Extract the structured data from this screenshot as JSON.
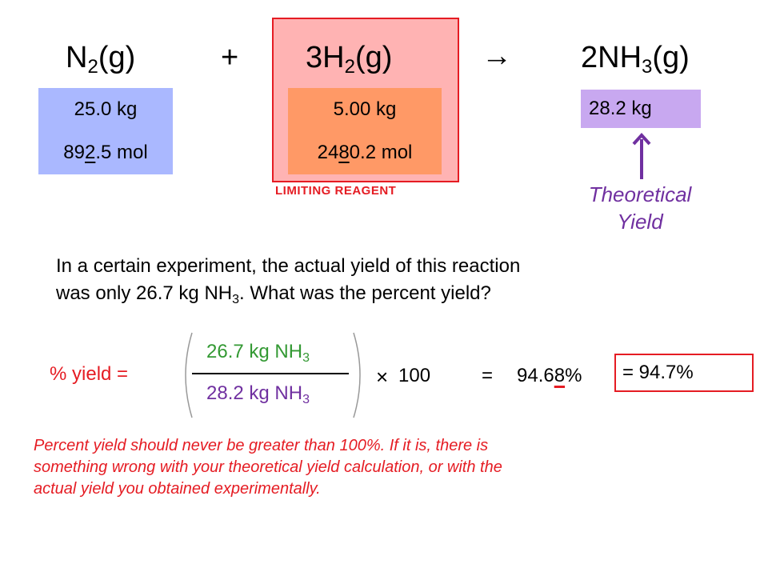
{
  "equation": {
    "reactant1": {
      "pre": "N",
      "sub": "2",
      "post": "(g)"
    },
    "plus": "+",
    "reactant2": {
      "pre": "3H",
      "sub": "2",
      "post": "(g)"
    },
    "arrow": "→",
    "product": {
      "pre": "2NH",
      "sub": "3",
      "post": "(g)"
    }
  },
  "n2_box": {
    "mass": "25.0 kg",
    "mol_a": "89",
    "mol_u": "2",
    "mol_b": ".5 mol",
    "color": "#aab8ff"
  },
  "h2_box": {
    "mass": "5.00 kg",
    "mol_a": "24",
    "mol_u": "8",
    "mol_b": "0.2 mol",
    "color": "#ff9966"
  },
  "limiting": {
    "label": "LIMITING REAGENT",
    "highlight_color": "#ffb3b3",
    "border_color": "#e51c23"
  },
  "nh3_box": {
    "mass": "28.2 kg",
    "color": "#c8a8f0"
  },
  "theoretical_yield": {
    "line1": "Theoretical",
    "line2": "Yield",
    "color": "#7030a0"
  },
  "question": {
    "line1": "In a certain experiment,  the actual yield of this reaction",
    "line2_pre": "was only 26.7 kg NH",
    "line2_sub": "3",
    "line2_post": ".  What was the percent yield?"
  },
  "calc": {
    "label": "% yield =",
    "numerator": {
      "text": "26.7 kg NH",
      "sub": "3"
    },
    "denominator": {
      "text": "28.2 kg NH",
      "sub": "3"
    },
    "times": "×",
    "hundred": "100",
    "equals": "=",
    "raw_a": "94.6",
    "raw_u": "8",
    "raw_b": "%",
    "rounded": "=  94.7%"
  },
  "note": [
    "Percent yield should never be greater than 100%.  If it is, there is",
    "something wrong with your theoretical yield calculation, or with the",
    "actual yield you obtained experimentally."
  ]
}
